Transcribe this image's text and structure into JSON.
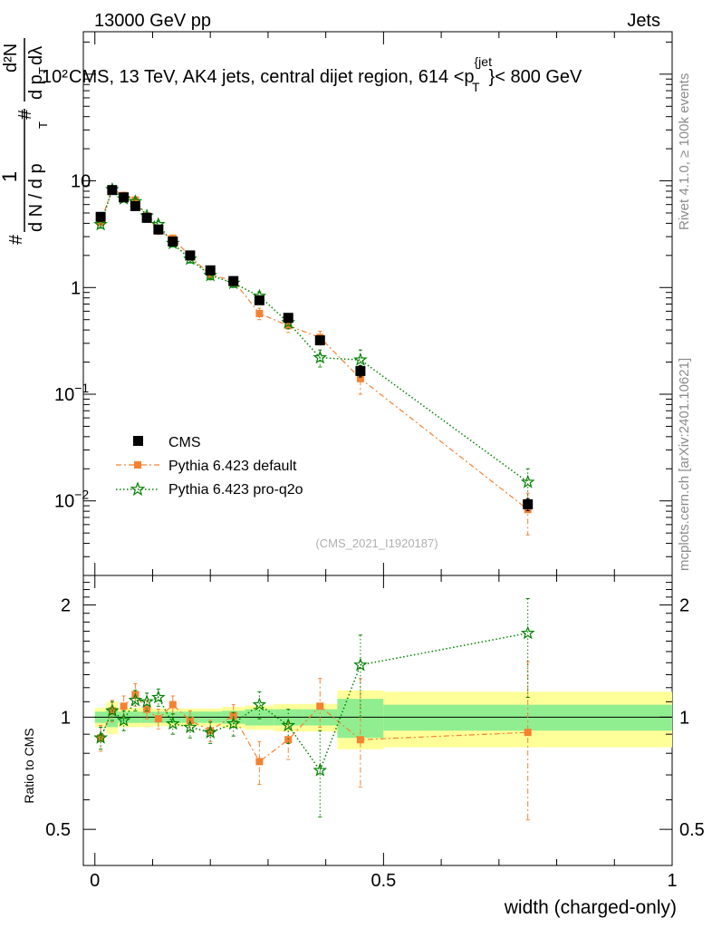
{
  "header": {
    "energy_label": "13000 GeV pp",
    "category_label": "Jets"
  },
  "side_labels": {
    "rivet": "Rivet 4.1.0, ≥ 100k events",
    "mcplots": "mcplots.cern.ch [arXiv:2401.10621]"
  },
  "watermark": "(CMS_2021_I1920187)",
  "colors": {
    "data": "#000000",
    "default": "#f58231",
    "proq2o": "#008000",
    "band_inner": "#90ee90",
    "band_outer": "#ffff99"
  },
  "chart_data": [
    {
      "type": "scatter",
      "title": "CMS, 13 TeV, AK4 jets, central dijet region, 614 < p_T^{jet} < 800 GeV",
      "title_parts": {
        "main": "CMS, 13 TeV, AK4 jets, central dijet region, 614 <p",
        "sup": "{jet",
        "sub": "T",
        "tail": "}< 800 GeV"
      },
      "y_exponent_overlap": "10²",
      "ylabel_parts": {
        "frac_num": "1",
        "frac_den": "d N / d p",
        "hash_left": "#",
        "hash_num": "#",
        "num_tail": "d²N",
        "den_tail": "d p",
        "dlam": "dλ",
        "sub_T": "T"
      },
      "yscale": "log",
      "ylim": [
        0.002,
        250
      ],
      "yticks": [
        {
          "value": 0.01,
          "base": "10",
          "exp": "−2"
        },
        {
          "value": 0.1,
          "base": "10",
          "exp": "−1"
        },
        {
          "value": 1,
          "base": "1",
          "exp": ""
        },
        {
          "value": 10,
          "base": "10",
          "exp": ""
        }
      ],
      "xlim": [
        -0.02,
        1.0
      ],
      "x": [
        0.01,
        0.03,
        0.05,
        0.07,
        0.09,
        0.11,
        0.135,
        0.165,
        0.2,
        0.24,
        0.285,
        0.335,
        0.39,
        0.46,
        0.75
      ],
      "series": [
        {
          "name": "CMS",
          "values": [
            4.6,
            8.2,
            7.0,
            5.8,
            4.5,
            3.5,
            2.7,
            2.0,
            1.45,
            1.15,
            0.76,
            0.52,
            0.32,
            0.165,
            0.0093
          ],
          "err": [
            0.4,
            0.5,
            0.4,
            0.35,
            0.3,
            0.2,
            0.15,
            0.12,
            0.1,
            0.08,
            0.06,
            0.05,
            0.03,
            0.02,
            0.0012
          ]
        },
        {
          "name": "Pythia 6.423 default",
          "values": [
            4.1,
            8.4,
            7.3,
            6.6,
            4.7,
            3.4,
            2.9,
            1.95,
            1.32,
            1.16,
            0.57,
            0.44,
            0.34,
            0.14,
            0.0083
          ],
          "err": [
            0.3,
            0.5,
            0.4,
            0.5,
            0.3,
            0.25,
            0.2,
            0.15,
            0.12,
            0.1,
            0.07,
            0.06,
            0.05,
            0.04,
            0.0035
          ]
        },
        {
          "name": "Pythia 6.423 pro-q2o",
          "values": [
            3.9,
            8.3,
            6.8,
            6.4,
            4.7,
            3.9,
            2.6,
            1.85,
            1.3,
            1.1,
            0.83,
            0.47,
            0.22,
            0.21,
            0.015
          ],
          "err": [
            0.3,
            0.4,
            0.4,
            0.4,
            0.3,
            0.3,
            0.2,
            0.15,
            0.12,
            0.1,
            0.08,
            0.06,
            0.04,
            0.05,
            0.005
          ]
        }
      ],
      "legend": [
        "CMS",
        "Pythia 6.423 default",
        "Pythia 6.423 pro-q2o"
      ],
      "legend_position": "lower-left"
    },
    {
      "type": "scatter",
      "xlabel": "width (charged-only)",
      "ylabel": "Ratio to CMS",
      "yscale": "log",
      "ylim": [
        0.4,
        2.4
      ],
      "yticks": [
        0.5,
        1,
        2
      ],
      "ytick_labels": [
        "0.5",
        "1",
        "2"
      ],
      "xticks": [
        0,
        0.5,
        1
      ],
      "xtick_labels": [
        "0",
        "0.5",
        "1"
      ],
      "reference": 1,
      "bins": [
        [
          0.0,
          0.02
        ],
        [
          0.02,
          0.04
        ],
        [
          0.04,
          0.06
        ],
        [
          0.06,
          0.08
        ],
        [
          0.08,
          0.1
        ],
        [
          0.1,
          0.12
        ],
        [
          0.12,
          0.15
        ],
        [
          0.15,
          0.18
        ],
        [
          0.18,
          0.22
        ],
        [
          0.22,
          0.26
        ],
        [
          0.26,
          0.31
        ],
        [
          0.31,
          0.36
        ],
        [
          0.36,
          0.42
        ],
        [
          0.42,
          0.5
        ],
        [
          0.5,
          1.0
        ]
      ],
      "band_inner": [
        0.035,
        0.06,
        0.035,
        0.035,
        0.035,
        0.035,
        0.035,
        0.035,
        0.035,
        0.04,
        0.05,
        0.05,
        0.05,
        0.12,
        0.08
      ],
      "band_outer": [
        0.06,
        0.1,
        0.06,
        0.06,
        0.06,
        0.055,
        0.055,
        0.055,
        0.055,
        0.065,
        0.075,
        0.085,
        0.085,
        0.18,
        0.17
      ],
      "series": [
        {
          "name": "Pythia 6.423 default",
          "values": [
            0.88,
            1.04,
            1.07,
            1.15,
            1.05,
            0.99,
            1.08,
            0.98,
            0.92,
            1.01,
            0.76,
            0.87,
            1.07,
            0.87,
            0.91
          ],
          "err_low": [
            0.07,
            0.07,
            0.07,
            0.08,
            0.06,
            0.06,
            0.06,
            0.06,
            0.06,
            0.07,
            0.1,
            0.1,
            0.13,
            0.22,
            0.38
          ],
          "err_high": [
            0.07,
            0.07,
            0.07,
            0.08,
            0.06,
            0.06,
            0.06,
            0.06,
            0.06,
            0.07,
            0.1,
            0.1,
            0.2,
            0.4,
            0.5
          ]
        },
        {
          "name": "Pythia 6.423 pro-q2o",
          "values": [
            0.88,
            1.04,
            0.98,
            1.11,
            1.1,
            1.13,
            0.96,
            0.94,
            0.91,
            0.96,
            1.08,
            0.95,
            0.72,
            1.38,
            1.68
          ],
          "err_low": [
            0.06,
            0.06,
            0.06,
            0.07,
            0.06,
            0.06,
            0.06,
            0.06,
            0.06,
            0.07,
            0.09,
            0.1,
            0.18,
            0.38,
            0.55
          ],
          "err_high": [
            0.06,
            0.06,
            0.06,
            0.07,
            0.06,
            0.06,
            0.06,
            0.06,
            0.06,
            0.07,
            0.09,
            0.1,
            0.2,
            0.28,
            0.4
          ]
        }
      ]
    }
  ]
}
